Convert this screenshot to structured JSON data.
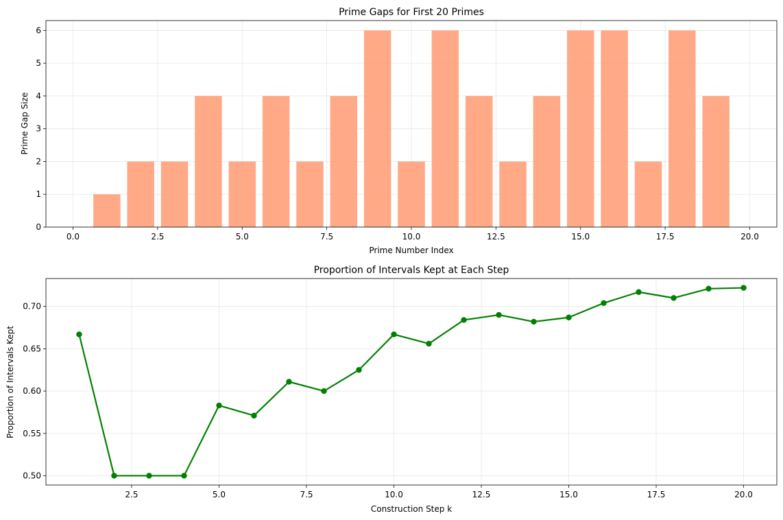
{
  "chart_data": [
    {
      "type": "bar",
      "title": "Prime Gaps for First 20 Primes",
      "xlabel": "Prime Number Index",
      "ylabel": "Prime Gap Size",
      "x": [
        1,
        2,
        3,
        4,
        5,
        6,
        7,
        8,
        9,
        10,
        11,
        12,
        13,
        14,
        15,
        16,
        17,
        18,
        19
      ],
      "values": [
        1,
        2,
        2,
        4,
        2,
        4,
        2,
        4,
        6,
        2,
        6,
        4,
        2,
        4,
        6,
        6,
        2,
        6,
        4
      ],
      "xlim": [
        -0.8,
        20.8
      ],
      "ylim": [
        0,
        6.3
      ],
      "xticks": [
        0,
        2.5,
        5,
        7.5,
        10,
        12.5,
        15,
        17.5,
        20
      ],
      "xtick_labels": [
        "0.0",
        "2.5",
        "5.0",
        "7.5",
        "10.0",
        "12.5",
        "15.0",
        "17.5",
        "20.0"
      ],
      "yticks": [
        0,
        1,
        2,
        3,
        4,
        5,
        6
      ],
      "ytick_labels": [
        "0",
        "1",
        "2",
        "3",
        "4",
        "5",
        "6"
      ],
      "bar_width": 0.8,
      "color": "#ffa07a",
      "alpha": 0.9,
      "grid": true
    },
    {
      "type": "line",
      "title": "Proportion of Intervals Kept at Each Step",
      "xlabel": "Construction Step k",
      "ylabel": "Proportion of Intervals Kept",
      "x": [
        1,
        2,
        3,
        4,
        5,
        6,
        7,
        8,
        9,
        10,
        11,
        12,
        13,
        14,
        15,
        16,
        17,
        18,
        19,
        20
      ],
      "y": [
        0.667,
        0.5,
        0.5,
        0.5,
        0.583,
        0.571,
        0.611,
        0.6,
        0.625,
        0.667,
        0.656,
        0.684,
        0.69,
        0.682,
        0.687,
        0.704,
        0.717,
        0.71,
        0.721,
        0.722
      ],
      "xlim": [
        0.05,
        20.95
      ],
      "ylim": [
        0.489,
        0.733
      ],
      "xticks": [
        2.5,
        5,
        7.5,
        10,
        12.5,
        15,
        17.5,
        20
      ],
      "xtick_labels": [
        "2.5",
        "5.0",
        "7.5",
        "10.0",
        "12.5",
        "15.0",
        "17.5",
        "20.0"
      ],
      "yticks": [
        0.5,
        0.55,
        0.6,
        0.65,
        0.7
      ],
      "ytick_labels": [
        "0.50",
        "0.55",
        "0.60",
        "0.65",
        "0.70"
      ],
      "color": "#008000",
      "marker": "circle",
      "grid": true
    }
  ]
}
